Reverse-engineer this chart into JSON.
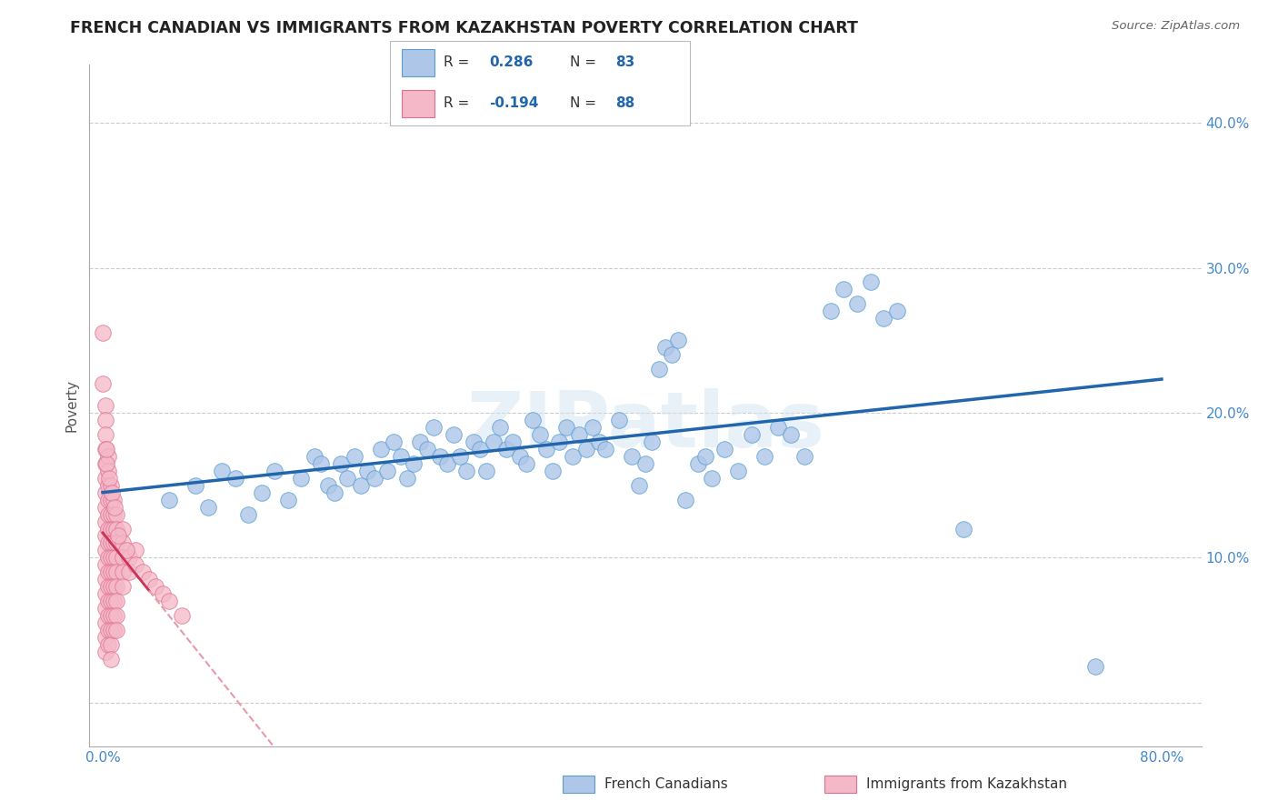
{
  "title": "FRENCH CANADIAN VS IMMIGRANTS FROM KAZAKHSTAN POVERTY CORRELATION CHART",
  "source": "Source: ZipAtlas.com",
  "xlabel_blue": "French Canadians",
  "xlabel_pink": "Immigrants from Kazakhstan",
  "ylabel": "Poverty",
  "R_blue": 0.286,
  "N_blue": 83,
  "R_pink": -0.194,
  "N_pink": 88,
  "blue_color": "#aec6e8",
  "blue_edge_color": "#5a9fd4",
  "blue_line_color": "#2166ac",
  "pink_color": "#f4b8c8",
  "pink_edge_color": "#e07090",
  "pink_line_color": "#cc3355",
  "pink_line_dash_color": "#e899aa",
  "blue_scatter": [
    [
      5.0,
      14.0
    ],
    [
      7.0,
      15.0
    ],
    [
      8.0,
      13.5
    ],
    [
      9.0,
      16.0
    ],
    [
      10.0,
      15.5
    ],
    [
      11.0,
      13.0
    ],
    [
      12.0,
      14.5
    ],
    [
      13.0,
      16.0
    ],
    [
      14.0,
      14.0
    ],
    [
      15.0,
      15.5
    ],
    [
      16.0,
      17.0
    ],
    [
      16.5,
      16.5
    ],
    [
      17.0,
      15.0
    ],
    [
      17.5,
      14.5
    ],
    [
      18.0,
      16.5
    ],
    [
      18.5,
      15.5
    ],
    [
      19.0,
      17.0
    ],
    [
      19.5,
      15.0
    ],
    [
      20.0,
      16.0
    ],
    [
      20.5,
      15.5
    ],
    [
      21.0,
      17.5
    ],
    [
      21.5,
      16.0
    ],
    [
      22.0,
      18.0
    ],
    [
      22.5,
      17.0
    ],
    [
      23.0,
      15.5
    ],
    [
      23.5,
      16.5
    ],
    [
      24.0,
      18.0
    ],
    [
      24.5,
      17.5
    ],
    [
      25.0,
      19.0
    ],
    [
      25.5,
      17.0
    ],
    [
      26.0,
      16.5
    ],
    [
      26.5,
      18.5
    ],
    [
      27.0,
      17.0
    ],
    [
      27.5,
      16.0
    ],
    [
      28.0,
      18.0
    ],
    [
      28.5,
      17.5
    ],
    [
      29.0,
      16.0
    ],
    [
      29.5,
      18.0
    ],
    [
      30.0,
      19.0
    ],
    [
      30.5,
      17.5
    ],
    [
      31.0,
      18.0
    ],
    [
      31.5,
      17.0
    ],
    [
      32.0,
      16.5
    ],
    [
      32.5,
      19.5
    ],
    [
      33.0,
      18.5
    ],
    [
      33.5,
      17.5
    ],
    [
      34.0,
      16.0
    ],
    [
      34.5,
      18.0
    ],
    [
      35.0,
      19.0
    ],
    [
      35.5,
      17.0
    ],
    [
      36.0,
      18.5
    ],
    [
      36.5,
      17.5
    ],
    [
      37.0,
      19.0
    ],
    [
      37.5,
      18.0
    ],
    [
      38.0,
      17.5
    ],
    [
      39.0,
      19.5
    ],
    [
      40.0,
      17.0
    ],
    [
      40.5,
      15.0
    ],
    [
      41.0,
      16.5
    ],
    [
      41.5,
      18.0
    ],
    [
      42.0,
      23.0
    ],
    [
      42.5,
      24.5
    ],
    [
      43.0,
      24.0
    ],
    [
      43.5,
      25.0
    ],
    [
      44.0,
      14.0
    ],
    [
      45.0,
      16.5
    ],
    [
      45.5,
      17.0
    ],
    [
      46.0,
      15.5
    ],
    [
      47.0,
      17.5
    ],
    [
      48.0,
      16.0
    ],
    [
      49.0,
      18.5
    ],
    [
      50.0,
      17.0
    ],
    [
      51.0,
      19.0
    ],
    [
      52.0,
      18.5
    ],
    [
      53.0,
      17.0
    ],
    [
      55.0,
      27.0
    ],
    [
      56.0,
      28.5
    ],
    [
      57.0,
      27.5
    ],
    [
      58.0,
      29.0
    ],
    [
      59.0,
      26.5
    ],
    [
      60.0,
      27.0
    ],
    [
      65.0,
      12.0
    ],
    [
      75.0,
      2.5
    ]
  ],
  "pink_scatter": [
    [
      0.0,
      25.5
    ],
    [
      0.0,
      22.0
    ],
    [
      0.2,
      20.5
    ],
    [
      0.2,
      19.5
    ],
    [
      0.2,
      18.5
    ],
    [
      0.2,
      17.5
    ],
    [
      0.2,
      16.5
    ],
    [
      0.2,
      15.5
    ],
    [
      0.2,
      14.5
    ],
    [
      0.2,
      13.5
    ],
    [
      0.2,
      12.5
    ],
    [
      0.2,
      11.5
    ],
    [
      0.2,
      10.5
    ],
    [
      0.2,
      9.5
    ],
    [
      0.2,
      8.5
    ],
    [
      0.2,
      7.5
    ],
    [
      0.2,
      6.5
    ],
    [
      0.2,
      5.5
    ],
    [
      0.2,
      4.5
    ],
    [
      0.2,
      3.5
    ],
    [
      0.4,
      17.0
    ],
    [
      0.4,
      16.0
    ],
    [
      0.4,
      15.0
    ],
    [
      0.4,
      14.0
    ],
    [
      0.4,
      13.0
    ],
    [
      0.4,
      12.0
    ],
    [
      0.4,
      11.0
    ],
    [
      0.4,
      10.0
    ],
    [
      0.4,
      9.0
    ],
    [
      0.4,
      8.0
    ],
    [
      0.4,
      7.0
    ],
    [
      0.4,
      6.0
    ],
    [
      0.4,
      5.0
    ],
    [
      0.4,
      4.0
    ],
    [
      0.6,
      15.0
    ],
    [
      0.6,
      14.0
    ],
    [
      0.6,
      13.0
    ],
    [
      0.6,
      12.0
    ],
    [
      0.6,
      11.0
    ],
    [
      0.6,
      10.0
    ],
    [
      0.6,
      9.0
    ],
    [
      0.6,
      8.0
    ],
    [
      0.6,
      7.0
    ],
    [
      0.6,
      6.0
    ],
    [
      0.6,
      5.0
    ],
    [
      0.6,
      4.0
    ],
    [
      0.6,
      3.0
    ],
    [
      0.8,
      14.0
    ],
    [
      0.8,
      13.0
    ],
    [
      0.8,
      12.0
    ],
    [
      0.8,
      11.0
    ],
    [
      0.8,
      10.0
    ],
    [
      0.8,
      9.0
    ],
    [
      0.8,
      8.0
    ],
    [
      0.8,
      7.0
    ],
    [
      0.8,
      6.0
    ],
    [
      0.8,
      5.0
    ],
    [
      1.0,
      13.0
    ],
    [
      1.0,
      12.0
    ],
    [
      1.0,
      11.0
    ],
    [
      1.0,
      10.0
    ],
    [
      1.0,
      9.0
    ],
    [
      1.0,
      8.0
    ],
    [
      1.0,
      7.0
    ],
    [
      1.0,
      6.0
    ],
    [
      1.0,
      5.0
    ],
    [
      1.5,
      12.0
    ],
    [
      1.5,
      11.0
    ],
    [
      1.5,
      10.0
    ],
    [
      1.5,
      9.0
    ],
    [
      1.5,
      8.0
    ],
    [
      2.0,
      10.0
    ],
    [
      2.0,
      9.0
    ],
    [
      2.5,
      10.5
    ],
    [
      2.5,
      9.5
    ],
    [
      3.0,
      9.0
    ],
    [
      3.5,
      8.5
    ],
    [
      4.0,
      8.0
    ],
    [
      4.5,
      7.5
    ],
    [
      5.0,
      7.0
    ],
    [
      6.0,
      6.0
    ],
    [
      0.3,
      16.5
    ],
    [
      0.3,
      17.5
    ],
    [
      0.5,
      15.5
    ],
    [
      0.7,
      14.5
    ],
    [
      0.9,
      13.5
    ],
    [
      1.2,
      11.5
    ],
    [
      1.8,
      10.5
    ]
  ],
  "xlim_data": [
    0,
    80
  ],
  "ylim_data": [
    0,
    42
  ],
  "x_plot_min": 0,
  "x_plot_max": 80,
  "y_plot_min": 0,
  "y_plot_max": 40,
  "xticks": [
    0,
    10,
    20,
    30,
    40,
    50,
    60,
    70,
    80
  ],
  "xticklabels": [
    "0.0%",
    "",
    "",
    "",
    "",
    "",
    "",
    "",
    "80.0%"
  ],
  "ytick_positions": [
    0,
    10,
    20,
    30,
    40
  ],
  "ytick_right_labels": [
    "",
    "10.0%",
    "20.0%",
    "30.0%",
    "40.0%"
  ],
  "grid_color": "#cccccc",
  "watermark": "ZIPatlas",
  "background_color": "#ffffff",
  "title_color": "#222222",
  "source_color": "#666666",
  "tick_label_color": "#4488cc"
}
